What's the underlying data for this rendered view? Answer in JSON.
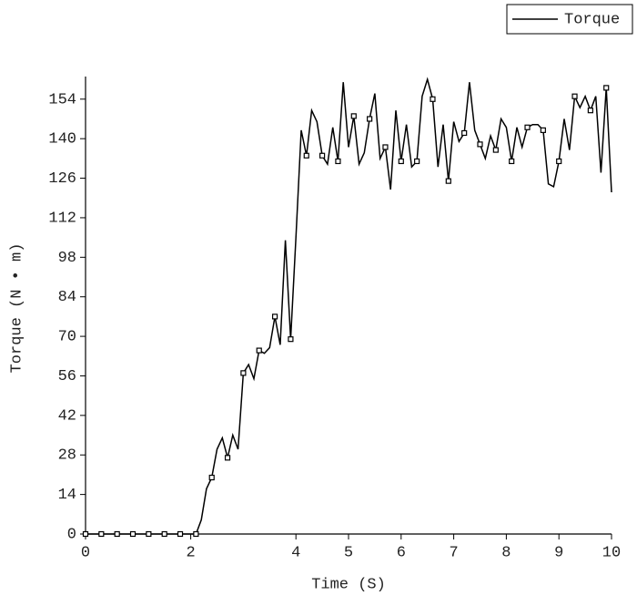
{
  "chart_data": {
    "type": "line",
    "x_label": "Time (S)",
    "y_label": "Torque (N • m)",
    "x": [
      0,
      0.1,
      0.2,
      0.3,
      0.4,
      0.5,
      0.6,
      0.7,
      0.8,
      0.9,
      1,
      1.1,
      1.2,
      1.3,
      1.4,
      1.5,
      1.6,
      1.7,
      1.8,
      1.9,
      2,
      2.1,
      2.2,
      2.3,
      2.4,
      2.5,
      2.6,
      2.7,
      2.8,
      2.9,
      3,
      3.1,
      3.2,
      3.3,
      3.4,
      3.5,
      3.6,
      3.7,
      3.8,
      3.9,
      4,
      4.1,
      4.2,
      4.3,
      4.4,
      4.5,
      4.6,
      4.7,
      4.8,
      4.9,
      5,
      5.1,
      5.2,
      5.3,
      5.4,
      5.5,
      5.6,
      5.7,
      5.8,
      5.9,
      6,
      6.1,
      6.2,
      6.3,
      6.4,
      6.5,
      6.6,
      6.7,
      6.8,
      6.9,
      7,
      7.1,
      7.2,
      7.3,
      7.4,
      7.5,
      7.6,
      7.7,
      7.8,
      7.9,
      8,
      8.1,
      8.2,
      8.3,
      8.4,
      8.5,
      8.6,
      8.7,
      8.8,
      8.9,
      9,
      9.1,
      9.2,
      9.3,
      9.4,
      9.5,
      9.6,
      9.7,
      9.8,
      9.9,
      10
    ],
    "series": [
      {
        "name": "Torque",
        "color": "#000000",
        "values": [
          0,
          0,
          0,
          0,
          0,
          0,
          0,
          0,
          0,
          0,
          0,
          0,
          0,
          0,
          0,
          0,
          0,
          0,
          0,
          0,
          0,
          0,
          5,
          16,
          20,
          30,
          34,
          27,
          35,
          30,
          57,
          60,
          55,
          65,
          64,
          66,
          77,
          67,
          104,
          69,
          105,
          143,
          134,
          150,
          146,
          134,
          131,
          144,
          132,
          160,
          137,
          148,
          131,
          135,
          147,
          156,
          133,
          137,
          122,
          150,
          132,
          145,
          130,
          132,
          155,
          161,
          154,
          130,
          145,
          125,
          146,
          139,
          142,
          160,
          143,
          138,
          133,
          141,
          136,
          147,
          144,
          132,
          144,
          137,
          144,
          145,
          145,
          143,
          124,
          123,
          132,
          147,
          136,
          155,
          151,
          155,
          150,
          155,
          128,
          158,
          121
        ]
      }
    ],
    "xlim": [
      0,
      10
    ],
    "xticks": [
      0,
      2,
      4,
      5,
      6,
      7,
      8,
      9,
      10
    ],
    "ylim": [
      0,
      162
    ],
    "yticks": [
      0,
      14,
      28,
      42,
      56,
      70,
      84,
      98,
      112,
      126,
      140,
      154
    ],
    "grid": false,
    "legend": "top-right"
  }
}
